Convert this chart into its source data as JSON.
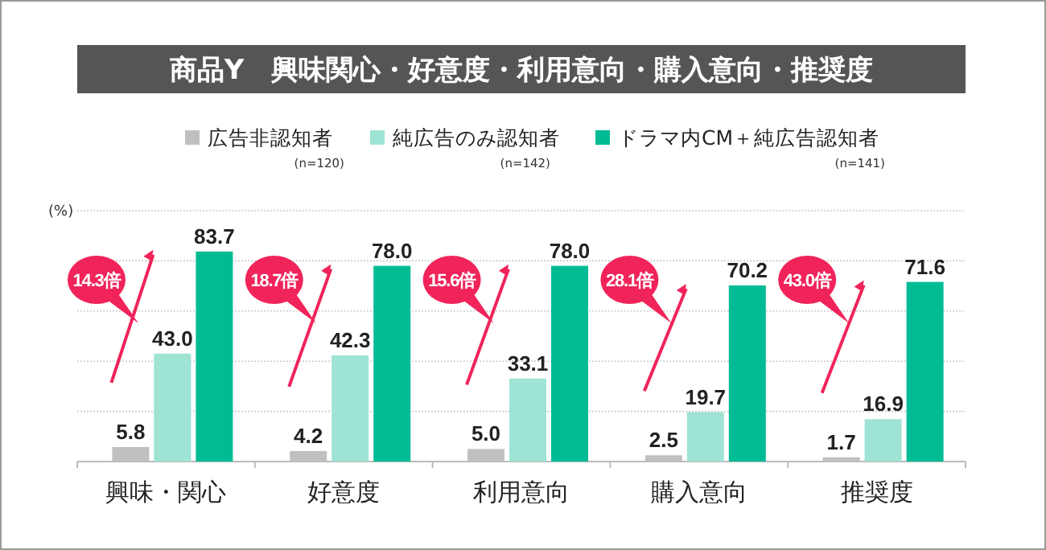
{
  "chart_data": {
    "type": "bar",
    "title": "商品Y　興味関心・好意度・利用意向・購入意向・推奨度",
    "ylabel": "(%)",
    "categories": [
      "興味・関心",
      "好意度",
      "利用意向",
      "購入意向",
      "推奨度"
    ],
    "series": [
      {
        "name": "広告非認知者",
        "color": "#c0c0c0",
        "values": [
          5.8,
          4.2,
          5.0,
          2.5,
          1.7
        ],
        "value_labels": [
          "5.8",
          "4.2",
          "5.0",
          "2.5",
          "1.7"
        ]
      },
      {
        "name": "純広告のみ認知者",
        "color": "#9ee3d4",
        "values": [
          43.0,
          42.3,
          33.1,
          19.7,
          16.9
        ],
        "value_labels": [
          "43.0",
          "42.3",
          "33.1",
          "19.7",
          "16.9"
        ]
      },
      {
        "name": "ドラマ内CM＋純広告認知者",
        "color": "#00bb94",
        "values": [
          83.7,
          78.0,
          78.0,
          70.2,
          71.6
        ],
        "value_labels": [
          "83.7",
          "78.0",
          "78.0",
          "70.2",
          "71.6"
        ]
      }
    ],
    "ylim": [
      0,
      100
    ],
    "yticks": [
      {
        "value": 0,
        "label": null
      },
      {
        "value": 20,
        "label": null
      },
      {
        "value": 40,
        "label": null
      },
      {
        "value": 60,
        "label": null
      },
      {
        "value": 80,
        "label": null
      },
      {
        "value": 100,
        "label": null
      }
    ],
    "grid": "y",
    "legend": "top",
    "annotations": [
      "(n=120)",
      "(n=142)",
      "(n=141)",
      "14.3倍",
      "18.7倍",
      "15.6倍",
      "28.1倍",
      "43.0倍"
    ]
  }
}
